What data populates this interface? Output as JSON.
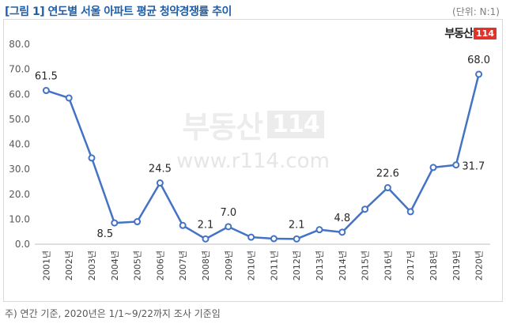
{
  "header": {
    "title": "[그림 1] 연도별 서울 아파트 평균 청약경쟁률 추이",
    "unit": "(단위: N:1)"
  },
  "logo": {
    "text": "부동산",
    "box": "114"
  },
  "watermark": {
    "brand": "부동산",
    "box": "114",
    "url": "www.r114.com"
  },
  "footnote": "주) 연간 기준, 2020년은 1/1~9/22까지 조사 기준임",
  "colors": {
    "line": "#4472c4",
    "title": "#1f5ea8",
    "logo_red": "#e0342b"
  },
  "chart_data": {
    "type": "line",
    "title": "",
    "xlabel": "",
    "ylabel": "",
    "ylim": [
      0,
      80
    ],
    "yticks": [
      "0.0",
      "10.0",
      "20.0",
      "30.0",
      "40.0",
      "50.0",
      "60.0",
      "70.0",
      "80.0"
    ],
    "grid": false,
    "categories": [
      "2001년",
      "2002년",
      "2003년",
      "2004년",
      "2005년",
      "2006년",
      "2007년",
      "2008년",
      "2009년",
      "2010년",
      "2011년",
      "2012년",
      "2013년",
      "2014년",
      "2015년",
      "2016년",
      "2017년",
      "2018년",
      "2019년",
      "2020년"
    ],
    "series": [
      {
        "values": [
          61.5,
          58.5,
          34.5,
          8.5,
          9.0,
          24.5,
          7.5,
          2.1,
          7.0,
          2.8,
          2.2,
          2.1,
          5.8,
          4.8,
          14.0,
          22.6,
          13.0,
          30.7,
          31.7,
          68.0
        ]
      }
    ],
    "data_labels": [
      {
        "index": 0,
        "text": "61.5"
      },
      {
        "index": 3,
        "text": "8.5"
      },
      {
        "index": 5,
        "text": "24.5"
      },
      {
        "index": 7,
        "text": "2.1"
      },
      {
        "index": 8,
        "text": "7.0"
      },
      {
        "index": 11,
        "text": "2.1"
      },
      {
        "index": 13,
        "text": "4.8"
      },
      {
        "index": 15,
        "text": "22.6"
      },
      {
        "index": 18,
        "text": "31.7"
      },
      {
        "index": 19,
        "text": "68.0"
      }
    ]
  }
}
